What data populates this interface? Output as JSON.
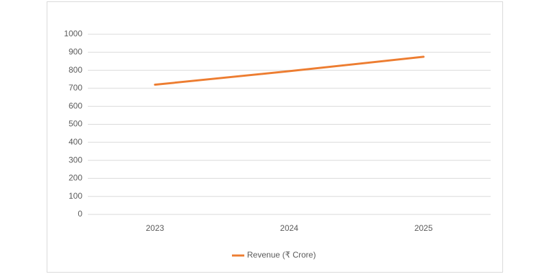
{
  "chart_data": {
    "type": "line",
    "categories": [
      "2023",
      "2024",
      "2025"
    ],
    "series": [
      {
        "name": "Revenue (₹ Crore)",
        "color": "#ed7d31",
        "values": [
          720,
          795,
          875
        ]
      }
    ],
    "ylim": [
      0,
      1000
    ],
    "yticks": [
      0,
      100,
      200,
      300,
      400,
      500,
      600,
      700,
      800,
      900,
      1000
    ],
    "grid": true,
    "legend": "bottom"
  }
}
